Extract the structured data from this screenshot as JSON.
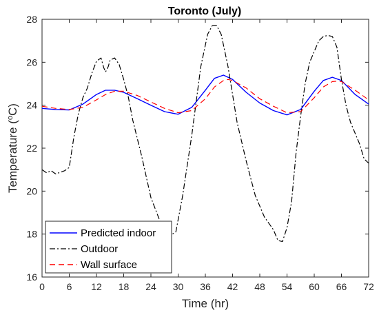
{
  "chart_data": {
    "type": "line",
    "title": "Toronto (July)",
    "xlabel": "Time (hr)",
    "ylabel_prefix": "Temperature (",
    "ylabel_sup": "o",
    "ylabel_suffix": "C)",
    "xlim": [
      0,
      72
    ],
    "ylim": [
      16,
      28
    ],
    "xticks": [
      "0",
      "6",
      "12",
      "18",
      "24",
      "30",
      "36",
      "42",
      "48",
      "54",
      "60",
      "66",
      "72"
    ],
    "yticks": [
      "16",
      "18",
      "20",
      "22",
      "24",
      "26",
      "28"
    ],
    "grid": false,
    "legend_position": "bottom-left",
    "series": [
      {
        "name": "Predicted indoor",
        "color": "#0000ff",
        "dash": "solid",
        "points": [
          [
            0,
            23.85
          ],
          [
            3,
            23.8
          ],
          [
            6,
            23.78
          ],
          [
            9,
            24.05
          ],
          [
            12,
            24.5
          ],
          [
            14,
            24.7
          ],
          [
            16,
            24.7
          ],
          [
            18,
            24.6
          ],
          [
            21,
            24.3
          ],
          [
            24,
            24.0
          ],
          [
            27,
            23.7
          ],
          [
            30,
            23.58
          ],
          [
            33,
            23.9
          ],
          [
            36,
            24.7
          ],
          [
            38,
            25.25
          ],
          [
            40,
            25.4
          ],
          [
            42,
            25.2
          ],
          [
            45,
            24.6
          ],
          [
            48,
            24.1
          ],
          [
            51,
            23.75
          ],
          [
            54,
            23.55
          ],
          [
            57,
            23.8
          ],
          [
            60,
            24.65
          ],
          [
            62,
            25.15
          ],
          [
            64,
            25.3
          ],
          [
            66,
            25.15
          ],
          [
            69,
            24.5
          ],
          [
            72,
            24.05
          ]
        ]
      },
      {
        "name": "Outdoor",
        "color": "#000000",
        "dash": "dashdot",
        "points": [
          [
            0,
            21.0
          ],
          [
            1,
            20.85
          ],
          [
            2,
            20.95
          ],
          [
            3,
            20.8
          ],
          [
            5,
            20.95
          ],
          [
            6,
            21.1
          ],
          [
            7,
            22.5
          ],
          [
            8,
            23.6
          ],
          [
            9,
            24.35
          ],
          [
            10,
            24.8
          ],
          [
            11,
            25.5
          ],
          [
            12,
            26.05
          ],
          [
            13,
            26.2
          ],
          [
            13.6,
            25.75
          ],
          [
            14,
            25.55
          ],
          [
            14.6,
            25.8
          ],
          [
            15,
            26.1
          ],
          [
            16,
            26.2
          ],
          [
            17,
            25.9
          ],
          [
            18,
            25.2
          ],
          [
            19,
            24.4
          ],
          [
            20,
            23.3
          ],
          [
            22,
            21.6
          ],
          [
            24,
            19.7
          ],
          [
            26,
            18.6
          ],
          [
            28,
            17.9
          ],
          [
            29.5,
            18.1
          ],
          [
            31,
            19.8
          ],
          [
            33,
            22.6
          ],
          [
            35,
            25.8
          ],
          [
            36.5,
            27.3
          ],
          [
            37.5,
            27.7
          ],
          [
            38.5,
            27.7
          ],
          [
            39.5,
            27.3
          ],
          [
            41,
            25.8
          ],
          [
            43,
            23.2
          ],
          [
            45,
            21.4
          ],
          [
            47,
            19.8
          ],
          [
            49,
            18.8
          ],
          [
            51,
            18.2
          ],
          [
            52,
            17.7
          ],
          [
            53,
            17.65
          ],
          [
            54,
            18.3
          ],
          [
            55,
            19.5
          ],
          [
            56,
            21.8
          ],
          [
            57,
            23.5
          ],
          [
            58,
            25.0
          ],
          [
            59,
            26.0
          ],
          [
            60,
            26.5
          ],
          [
            61,
            27.0
          ],
          [
            62,
            27.2
          ],
          [
            63,
            27.25
          ],
          [
            64,
            27.2
          ],
          [
            65,
            26.7
          ],
          [
            66,
            25.2
          ],
          [
            67,
            24.0
          ],
          [
            68,
            23.2
          ],
          [
            70,
            22.2
          ],
          [
            71,
            21.5
          ],
          [
            72,
            21.3
          ]
        ]
      },
      {
        "name": "Wall surface",
        "color": "#ff0000",
        "dash": "dashed",
        "points": [
          [
            0,
            23.95
          ],
          [
            3,
            23.85
          ],
          [
            6,
            23.8
          ],
          [
            9,
            23.9
          ],
          [
            12,
            24.25
          ],
          [
            14,
            24.5
          ],
          [
            16,
            24.65
          ],
          [
            18,
            24.65
          ],
          [
            21,
            24.45
          ],
          [
            24,
            24.15
          ],
          [
            27,
            23.85
          ],
          [
            30,
            23.65
          ],
          [
            33,
            23.75
          ],
          [
            36,
            24.3
          ],
          [
            38,
            24.85
          ],
          [
            40,
            25.15
          ],
          [
            41,
            25.2
          ],
          [
            42,
            25.15
          ],
          [
            45,
            24.8
          ],
          [
            48,
            24.3
          ],
          [
            51,
            23.95
          ],
          [
            54,
            23.65
          ],
          [
            57,
            23.7
          ],
          [
            60,
            24.35
          ],
          [
            62,
            24.85
          ],
          [
            64,
            25.1
          ],
          [
            65,
            25.12
          ],
          [
            66,
            25.1
          ],
          [
            69,
            24.7
          ],
          [
            72,
            24.25
          ]
        ]
      }
    ]
  }
}
